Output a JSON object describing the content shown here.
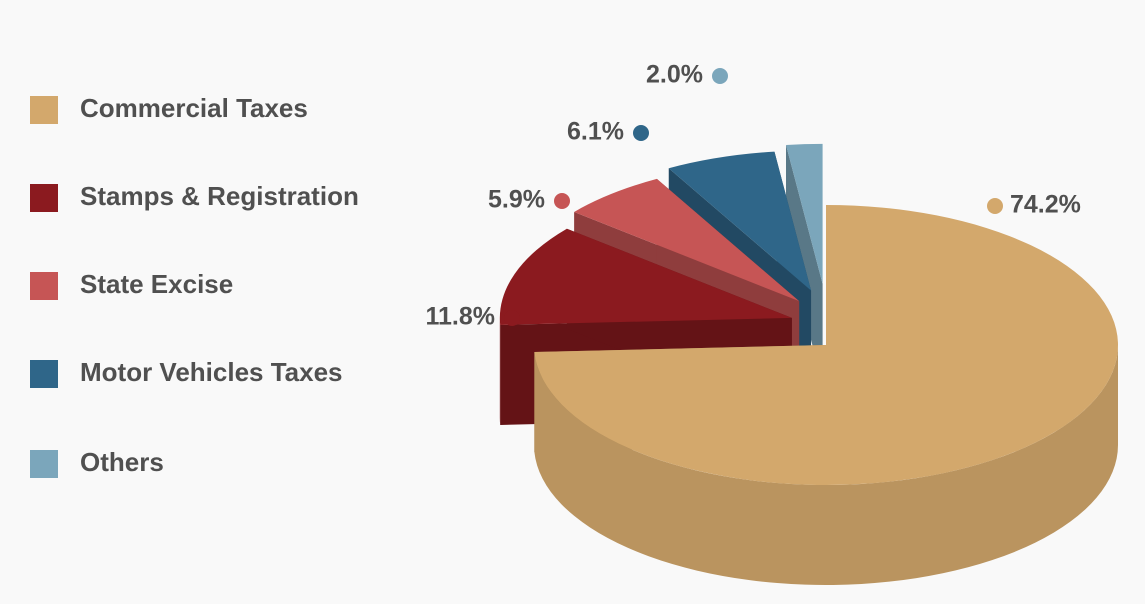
{
  "chart_data": {
    "type": "pie3d",
    "categories": [
      "Commercial Taxes",
      "Stamps & Registration",
      "State Excise",
      "Motor Vehicles Taxes",
      "Others"
    ],
    "values": [
      74.2,
      11.8,
      5.9,
      6.1,
      2.0
    ],
    "value_labels": [
      "74.2%",
      "11.8%",
      "5.9%",
      "6.1%",
      "2.0%"
    ],
    "colors": [
      "#d3a86c",
      "#8b1a1f",
      "#c65555",
      "#2f6689",
      "#7ba6bb"
    ],
    "legend": "left"
  }
}
